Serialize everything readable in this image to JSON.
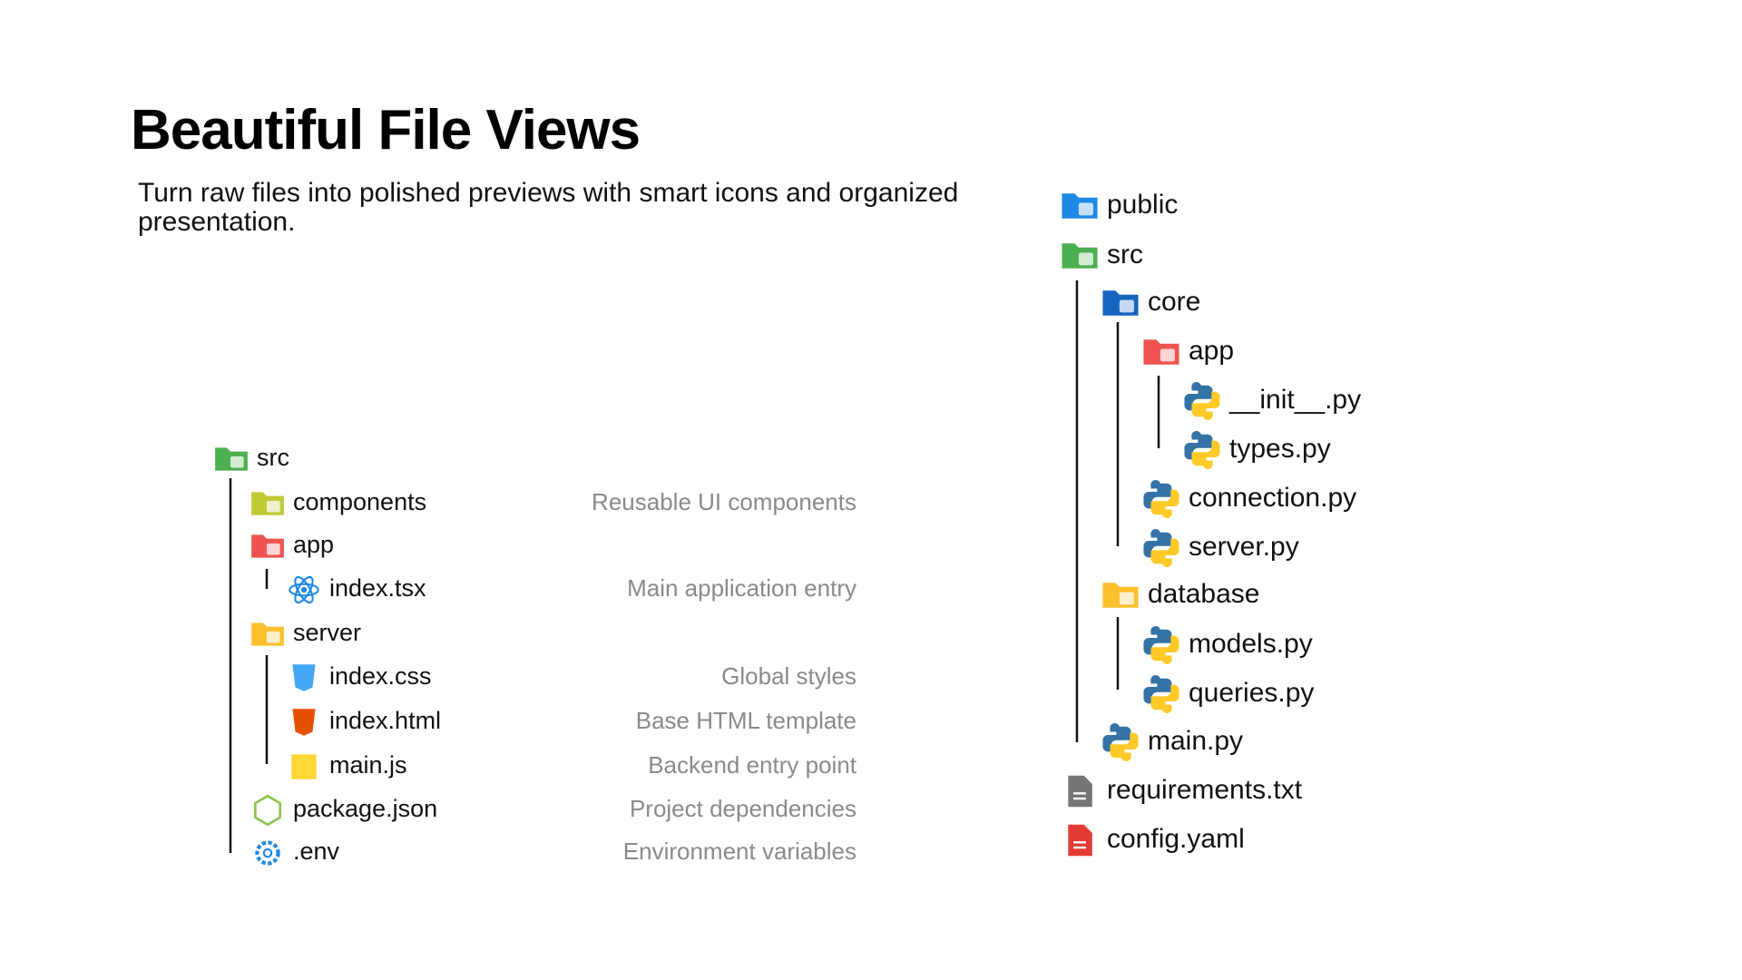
{
  "header": {
    "title": "Beautiful File Views",
    "subtitle": "Turn raw files into polished previews with smart icons and organized presentation."
  },
  "left_tree": {
    "items": [
      {
        "name": "src"
      },
      {
        "name": "components",
        "description": "Reusable UI components"
      },
      {
        "name": "app"
      },
      {
        "name": "index.tsx",
        "description": "Main application entry"
      },
      {
        "name": "server"
      },
      {
        "name": "index.css",
        "description": "Global styles"
      },
      {
        "name": "index.html",
        "description": "Base HTML template"
      },
      {
        "name": "main.js",
        "description": "Backend entry point"
      },
      {
        "name": "package.json",
        "description": "Project dependencies"
      },
      {
        "name": ".env",
        "description": "Environment variables"
      }
    ]
  },
  "right_tree": {
    "items": [
      {
        "name": "public"
      },
      {
        "name": "src"
      },
      {
        "name": "core"
      },
      {
        "name": "app"
      },
      {
        "name": "__init__.py"
      },
      {
        "name": "types.py"
      },
      {
        "name": "connection.py"
      },
      {
        "name": "server.py"
      },
      {
        "name": "database"
      },
      {
        "name": "models.py"
      },
      {
        "name": "queries.py"
      },
      {
        "name": "main.py"
      },
      {
        "name": "requirements.txt"
      },
      {
        "name": "config.yaml"
      }
    ]
  }
}
